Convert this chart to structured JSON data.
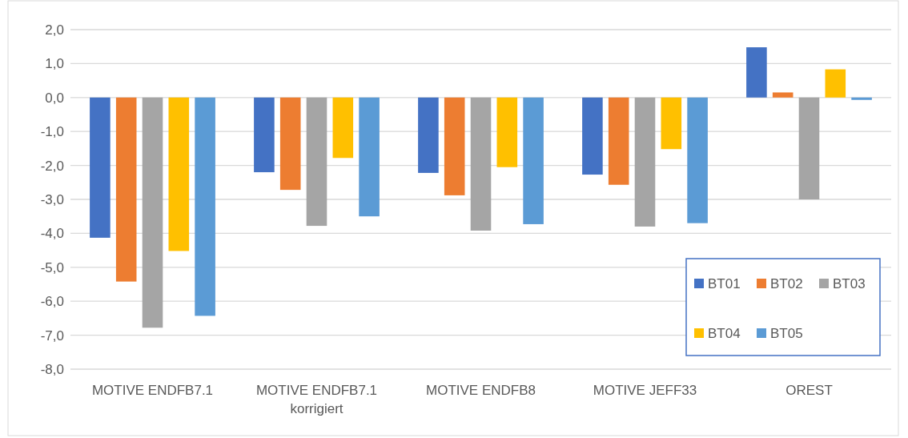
{
  "chart_data": {
    "type": "bar",
    "categories": [
      "MOTIVE ENDFB7.1",
      "MOTIVE ENDFB7.1 korrigiert",
      "MOTIVE ENDFB8",
      "MOTIVE JEFF33",
      "OREST"
    ],
    "series": [
      {
        "name": "BT01",
        "color": "#4472c4",
        "values": [
          -4.13,
          -2.2,
          -2.22,
          -2.27,
          1.48
        ]
      },
      {
        "name": "BT02",
        "color": "#ed7d31",
        "values": [
          -5.42,
          -2.72,
          -2.88,
          -2.57,
          0.15
        ]
      },
      {
        "name": "BT03",
        "color": "#a5a5a5",
        "values": [
          -6.78,
          -3.78,
          -3.92,
          -3.8,
          -3.0
        ]
      },
      {
        "name": "BT04",
        "color": "#ffc000",
        "values": [
          -4.52,
          -1.78,
          -2.05,
          -1.52,
          0.83
        ]
      },
      {
        "name": "BT05",
        "color": "#5b9bd5",
        "values": [
          -6.43,
          -3.5,
          -3.73,
          -3.7,
          -0.07
        ]
      }
    ],
    "ylim": [
      -8,
      2
    ],
    "yticks": [
      {
        "value": 2,
        "label": "2,0"
      },
      {
        "value": 1,
        "label": "1,0"
      },
      {
        "value": 0,
        "label": "0,0"
      },
      {
        "value": -1,
        "label": "-1,0"
      },
      {
        "value": -2,
        "label": "-2,0"
      },
      {
        "value": -3,
        "label": "-3,0"
      },
      {
        "value": -4,
        "label": "-4,0"
      },
      {
        "value": -5,
        "label": "-5,0"
      },
      {
        "value": -6,
        "label": "-6,0"
      },
      {
        "value": -7,
        "label": "-7,0"
      },
      {
        "value": -8,
        "label": "-8,0"
      }
    ],
    "grid": "y",
    "legend": "bottom right"
  }
}
